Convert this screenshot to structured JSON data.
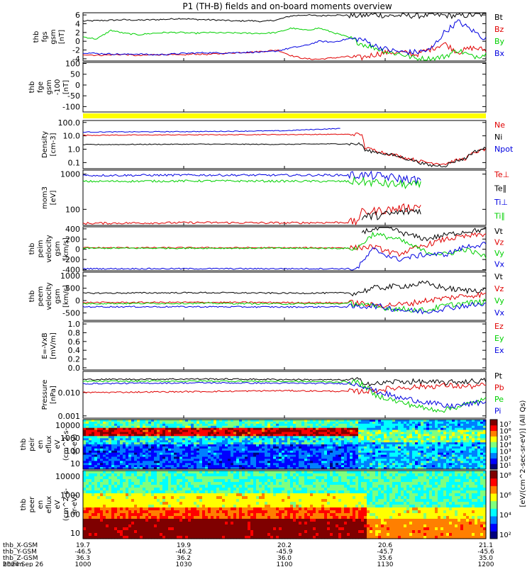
{
  "title": "P1 (TH-B) fields and on-board moments overview",
  "colors": {
    "black": "#000000",
    "red": "#e00000",
    "green": "#00d000",
    "blue": "#0000e0",
    "yellow": "#ffff00"
  },
  "chart_data": [
    {
      "type": "line",
      "panel": "fgs",
      "ylabel": [
        "thb",
        "fgs",
        "gsm",
        "[nT]"
      ],
      "ylim": [
        -4.5,
        6.5
      ],
      "yticks": [
        "6",
        "4",
        "2",
        "0",
        "-2",
        "-4"
      ],
      "series": [
        {
          "name": "Bt",
          "color": "black",
          "values": [
            4.6,
            4.7,
            4.8,
            4.9,
            4.8,
            4.9,
            5.0,
            5.2,
            5.0,
            4.9,
            4.8,
            4.6,
            4.7,
            4.5,
            4.9,
            5.8,
            6.0,
            5.8,
            6.0,
            5.9,
            5.8,
            6.1,
            5.8,
            5.9,
            5.8,
            6.0,
            5.9,
            5.8,
            6.0,
            6.1
          ]
        },
        {
          "name": "Bz",
          "color": "red",
          "values": [
            -3.0,
            -3.2,
            -3.1,
            -3.0,
            -3.3,
            -3.1,
            -3.0,
            -3.2,
            -2.9,
            -3.0,
            -2.8,
            -2.6,
            -2.5,
            -2.3,
            -2.0,
            -3.3,
            -4.0,
            -4.1,
            -3.8,
            -3.5,
            -3.8,
            -3.0,
            -2.5,
            -2.6,
            -3.0,
            -1.8,
            -0.5,
            -2.5,
            -1.5,
            -2.0
          ]
        },
        {
          "name": "By",
          "color": "green",
          "values": [
            1.0,
            0.5,
            2.5,
            1.8,
            1.5,
            1.8,
            2.0,
            2.0,
            1.8,
            2.0,
            1.9,
            1.9,
            1.8,
            1.8,
            2.0,
            3.0,
            2.5,
            3.0,
            2.0,
            1.0,
            -0.5,
            -1.5,
            -2.5,
            -3.0,
            -4.0,
            -4.0,
            -3.5,
            -2.0,
            -3.5,
            -3.0
          ]
        },
        {
          "name": "Bx",
          "color": "blue",
          "values": [
            -2.6,
            -2.8,
            -2.9,
            -3.0,
            -2.9,
            -3.1,
            -3.0,
            -2.8,
            -2.7,
            -2.6,
            -2.7,
            -2.6,
            -2.5,
            -2.5,
            -2.2,
            -1.5,
            -1.0,
            0.0,
            -0.2,
            0.5,
            0.5,
            -1.0,
            -2.0,
            -2.5,
            -2.5,
            -2.0,
            2.0,
            4.5,
            2.5,
            0.5
          ]
        }
      ]
    },
    {
      "type": "line",
      "panel": "fgs-100",
      "ylabel": [
        "thb",
        "fge",
        "gsm",
        "-100",
        "[nT]"
      ],
      "ylim": [
        -125,
        105
      ],
      "yticks": [
        "100",
        "50",
        "0",
        "-50",
        "-100"
      ],
      "series": []
    },
    {
      "type": "line",
      "panel": "density",
      "ylabel": [
        "Density",
        "[cm-3]"
      ],
      "ylim_log": [
        0.035,
        140
      ],
      "yticks": [
        "100.0",
        "10.0",
        "1.0",
        "0.1"
      ],
      "series": [
        {
          "name": "Ne",
          "color": "red",
          "x": [
            0.0,
            0.3,
            0.5,
            0.6,
            0.66,
            0.69,
            0.7,
            0.75,
            0.8,
            0.84,
            0.86,
            0.9,
            0.95,
            1.0
          ],
          "values": [
            11,
            12,
            12.5,
            12.8,
            13,
            13,
            1.2,
            0.5,
            0.22,
            0.12,
            0.1,
            0.08,
            0.2,
            1.0
          ]
        },
        {
          "name": "Ni",
          "color": "black",
          "x": [
            0.0,
            0.3,
            0.5,
            0.6,
            0.66,
            0.69,
            0.7,
            0.75,
            0.8,
            0.84,
            0.86,
            0.9,
            0.95,
            1.0
          ],
          "values": [
            2.2,
            2.4,
            2.3,
            2.5,
            2.5,
            2.4,
            0.8,
            0.45,
            0.2,
            0.09,
            0.06,
            0.06,
            0.2,
            1.2
          ]
        },
        {
          "name": "Npot",
          "color": "blue",
          "x": [
            0.0,
            0.3,
            0.5,
            0.6,
            0.64
          ],
          "values": [
            19,
            21,
            24,
            32,
            35
          ]
        }
      ]
    },
    {
      "type": "line",
      "panel": "temperature",
      "ylabel": [
        "mom3",
        "[eV]"
      ],
      "ylim_log": [
        35,
        1300
      ],
      "yticks": [
        "1000",
        "100"
      ],
      "series": [
        {
          "name": "Te⊥",
          "color": "red",
          "x": [
            0.0,
            0.3,
            0.5,
            0.68,
            0.69,
            0.75,
            0.8,
            0.84
          ],
          "values": [
            40,
            42,
            41,
            43,
            80,
            95,
            110,
            125
          ]
        },
        {
          "name": "Te∥",
          "color": "black",
          "x": [
            0.0,
            0.3,
            0.5,
            0.68,
            0.69,
            0.75,
            0.8,
            0.84
          ],
          "values": [
            null,
            null,
            null,
            null,
            60,
            70,
            85,
            95
          ]
        },
        {
          "name": "Ti⊥",
          "color": "blue",
          "x": [
            0.0,
            0.3,
            0.5,
            0.68,
            0.72,
            0.76,
            0.8,
            0.84
          ],
          "values": [
            920,
            940,
            930,
            940,
            900,
            820,
            720,
            650
          ]
        },
        {
          "name": "Ti∥",
          "color": "green",
          "x": [
            0.0,
            0.3,
            0.5,
            0.68,
            0.72,
            0.76,
            0.8,
            0.84
          ],
          "values": [
            620,
            640,
            630,
            620,
            580,
            520,
            500,
            480
          ]
        }
      ]
    },
    {
      "type": "line",
      "panel": "ion-velocity",
      "ylabel": [
        "thb",
        "peim",
        "velocity",
        "gsm",
        "[km/s]"
      ],
      "ylim": [
        -420,
        440
      ],
      "yticks": [
        "400",
        "200",
        "0",
        "-200",
        "-400"
      ],
      "series": [
        {
          "name": "Vt",
          "color": "black",
          "x": [
            0.69,
            0.72,
            0.76,
            0.8,
            0.85,
            0.9,
            0.95,
            1.0
          ],
          "values": [
            350,
            380,
            420,
            300,
            200,
            280,
            350,
            380
          ]
        },
        {
          "name": "Vz",
          "color": "red",
          "x": [
            0.0,
            0.3,
            0.5,
            0.68,
            0.72,
            0.78,
            0.85,
            0.9,
            0.95,
            1.0
          ],
          "values": [
            30,
            30,
            28,
            30,
            50,
            -100,
            80,
            200,
            250,
            300
          ]
        },
        {
          "name": "Vy",
          "color": "green",
          "x": [
            0.0,
            0.3,
            0.5,
            0.68,
            0.72,
            0.78,
            0.85,
            0.9,
            0.95,
            1.0
          ],
          "values": [
            20,
            22,
            20,
            18,
            300,
            200,
            -50,
            -100,
            0,
            -150
          ]
        },
        {
          "name": "Vx",
          "color": "blue",
          "x": [
            0.0,
            0.3,
            0.5,
            0.68,
            0.72,
            0.78,
            0.85,
            0.9,
            0.95,
            1.0
          ],
          "values": [
            -380,
            -380,
            -380,
            -380,
            0,
            -200,
            -100,
            -100,
            50,
            100
          ]
        }
      ]
    },
    {
      "type": "line",
      "panel": "electron-velocity",
      "ylabel": [
        "thb",
        "peem",
        "velocity",
        "gsm",
        "[km/s]"
      ],
      "ylim": [
        -800,
        1150
      ],
      "yticks": [
        "1000",
        "500",
        "0",
        "-500"
      ],
      "series": [
        {
          "name": "Vt",
          "color": "black",
          "x": [
            0.0,
            0.3,
            0.5,
            0.68,
            0.72,
            0.8,
            0.85,
            0.9,
            0.95,
            1.0
          ],
          "values": [
            300,
            320,
            300,
            310,
            500,
            600,
            700,
            500,
            400,
            450
          ]
        },
        {
          "name": "Vz",
          "color": "red",
          "x": [
            0.0,
            0.3,
            0.5,
            0.68,
            0.72,
            0.8,
            0.85,
            0.9,
            0.95,
            1.0
          ],
          "values": [
            -80,
            -70,
            -80,
            -90,
            -200,
            -150,
            0,
            100,
            200,
            250
          ]
        },
        {
          "name": "Vy",
          "color": "green",
          "x": [
            0.0,
            0.3,
            0.5,
            0.68,
            0.72,
            0.8,
            0.85,
            0.9,
            0.95,
            1.0
          ],
          "values": [
            -120,
            -110,
            -130,
            -120,
            -250,
            -350,
            -400,
            -200,
            -100,
            -50
          ]
        },
        {
          "name": "Vx",
          "color": "blue",
          "x": [
            0.0,
            0.3,
            0.5,
            0.68,
            0.72,
            0.8,
            0.85,
            0.9,
            0.95,
            1.0
          ],
          "values": [
            -250,
            -250,
            -260,
            -250,
            -200,
            -400,
            -450,
            -300,
            -200,
            -150
          ]
        }
      ]
    },
    {
      "type": "line",
      "panel": "efield",
      "ylabel": [
        "E=-VxB",
        "[mV/m]"
      ],
      "ylim": [
        -0.05,
        1.05
      ],
      "yticks": [
        "1.0",
        "0.8",
        "0.6",
        "0.4",
        "0.2",
        "0.0"
      ],
      "series": [
        {
          "name": "Ez",
          "color": "red",
          "values": []
        },
        {
          "name": "Ey",
          "color": "green",
          "values": []
        },
        {
          "name": "Ex",
          "color": "blue",
          "values": []
        }
      ]
    },
    {
      "type": "line",
      "panel": "pressure",
      "ylabel": [
        "Pressure",
        "[nPa]"
      ],
      "ylim_log": [
        0.0008,
        0.08
      ],
      "yticks": [
        "0.010",
        "0.001"
      ],
      "series": [
        {
          "name": "Pt",
          "color": "black",
          "x": [
            0.0,
            0.3,
            0.5,
            0.68,
            0.72,
            0.78,
            0.85,
            0.9,
            0.95,
            1.0
          ],
          "values": [
            0.036,
            0.038,
            0.036,
            0.034,
            0.022,
            0.03,
            0.028,
            0.026,
            0.03,
            0.032
          ]
        },
        {
          "name": "Pb",
          "color": "red",
          "x": [
            0.0,
            0.3,
            0.5,
            0.68,
            0.72,
            0.78,
            0.85,
            0.9,
            0.95,
            1.0
          ],
          "values": [
            0.01,
            0.011,
            0.012,
            0.011,
            0.012,
            0.016,
            0.018,
            0.02,
            0.018,
            0.02
          ]
        },
        {
          "name": "Pe",
          "color": "green",
          "x": [
            0.0,
            0.3,
            0.5,
            0.68,
            0.72,
            0.78,
            0.85,
            0.9,
            0.95,
            1.0
          ],
          "values": [
            0.03,
            0.031,
            0.03,
            0.028,
            0.008,
            0.004,
            0.002,
            0.0018,
            0.003,
            0.005
          ]
        },
        {
          "name": "Pi",
          "color": "blue",
          "x": [
            0.0,
            0.3,
            0.5,
            0.68,
            0.72,
            0.78,
            0.85,
            0.9,
            0.95,
            1.0
          ],
          "values": [
            0.024,
            0.026,
            0.025,
            0.024,
            0.012,
            0.006,
            0.004,
            0.0025,
            0.003,
            0.004
          ]
        }
      ]
    },
    {
      "type": "heatmap",
      "panel": "ion-spectrogram",
      "ylabel": [
        "thb",
        "peir",
        "en",
        "eflux",
        "eV",
        "(cm^2-s-",
        "sr-eV)"
      ],
      "yticks": [
        "10000",
        "1000",
        "100",
        "10"
      ]
    },
    {
      "type": "heatmap",
      "panel": "electron-spectrogram",
      "ylabel": [
        "thb",
        "peer",
        "en",
        "eflux",
        "eV",
        "(cm^2-s-",
        "sr-eV)"
      ],
      "yticks": [
        "10000",
        "1000",
        "100",
        "10"
      ]
    }
  ],
  "colorbars": [
    {
      "label": "[eV/(cm^2-sec-sr-eV)] (All Qs)",
      "ticks": [
        "10⁷",
        "10⁶",
        "10⁵",
        "10⁴",
        "10³",
        "10²",
        "10¹"
      ]
    },
    {
      "label": "[eV/(cm^2-sec-sr-eV)] (All Qs)",
      "ticks": [
        "10⁸",
        "10⁶",
        "10⁴",
        "10²"
      ]
    }
  ],
  "x_axis": {
    "rows": [
      {
        "label": "thb_X-GSM",
        "values": [
          "19.7",
          "19.9",
          "20.2",
          "20.6",
          "21.1"
        ]
      },
      {
        "label": "thb_Y-GSM",
        "values": [
          "-46.5",
          "-46.2",
          "-45.9",
          "-45.7",
          "-45.6"
        ]
      },
      {
        "label": "thb_Z-GSM",
        "values": [
          "36.3",
          "36.2",
          "36.0",
          "35.6",
          "35.0"
        ]
      },
      {
        "label": "hhmm",
        "values": [
          "1000",
          "1030",
          "1100",
          "1130",
          "1200"
        ]
      }
    ],
    "date": "2024 Sep 26"
  }
}
